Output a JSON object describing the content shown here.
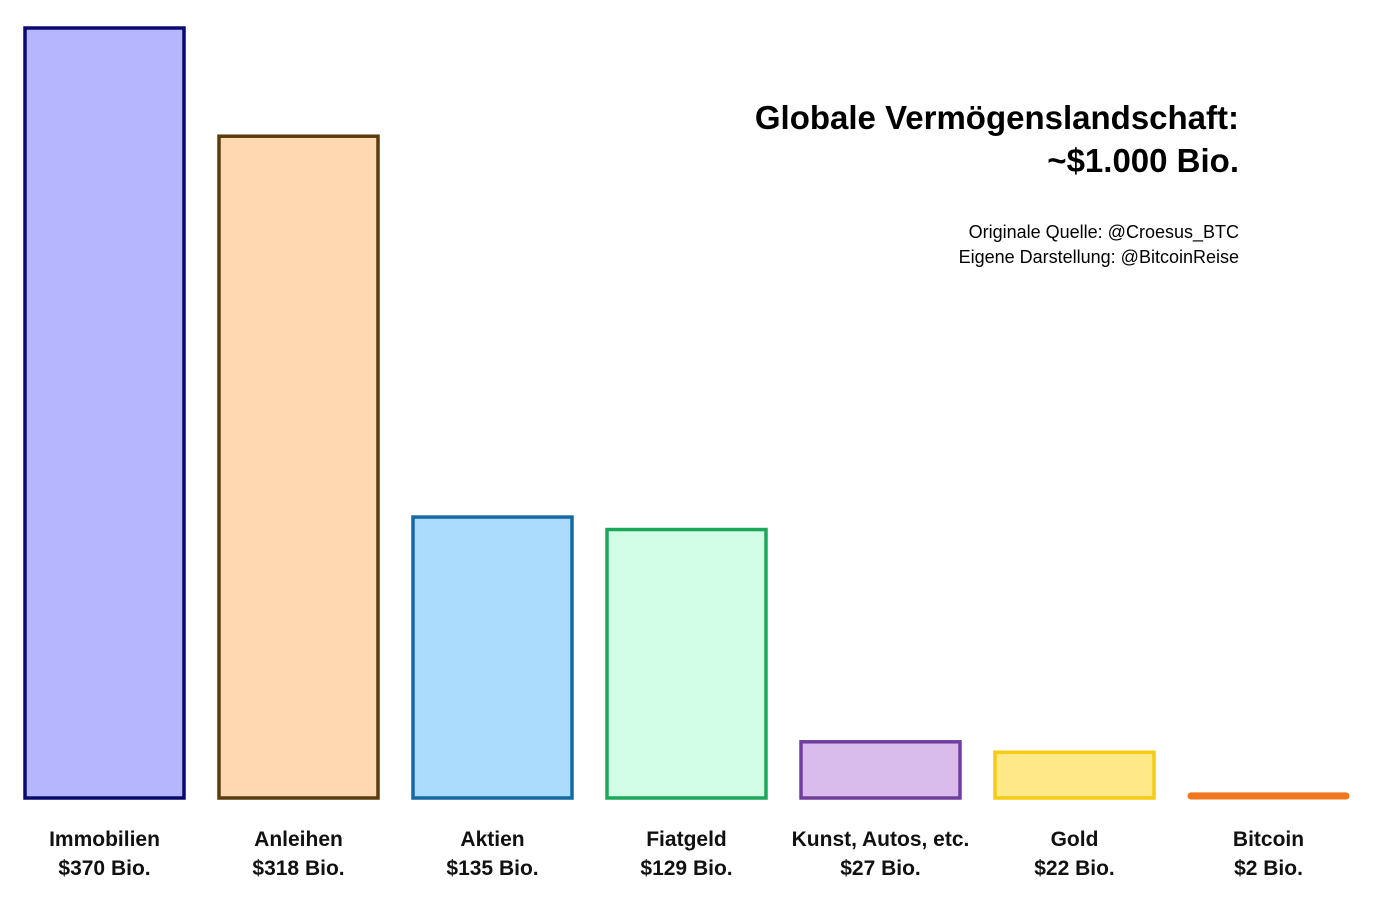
{
  "chart_data": {
    "type": "bar",
    "title_line1": "Globale Vermögenslandschaft:",
    "title_line2": "~$1.000 Bio.",
    "source_line1": "Originale Quelle: @Croesus_BTC",
    "source_line2": "Eigene Darstellung: @BitcoinReise",
    "categories": [
      "Immobilien",
      "Anleihen",
      "Aktien",
      "Fiatgeld",
      "Kunst, Autos, etc.",
      "Gold",
      "Bitcoin"
    ],
    "values": [
      370,
      318,
      135,
      129,
      27,
      22,
      2
    ],
    "value_labels": [
      "$370 Bio.",
      "$318 Bio.",
      "$135 Bio.",
      "$129 Bio.",
      "$27 Bio.",
      "$22 Bio.",
      "$2 Bio."
    ],
    "fill_colors": [
      "#b6b6ff",
      "#fed8b0",
      "#acdcfd",
      "#d2fde6",
      "#d9bcec",
      "#fee888",
      "#f07820"
    ],
    "stroke_colors": [
      "#0a0a6e",
      "#5c3b0f",
      "#1669a3",
      "#1ba85a",
      "#713e9e",
      "#f5cc14",
      "#f07820"
    ],
    "ylim": [
      0,
      370
    ],
    "grid": false,
    "legend": "none"
  }
}
